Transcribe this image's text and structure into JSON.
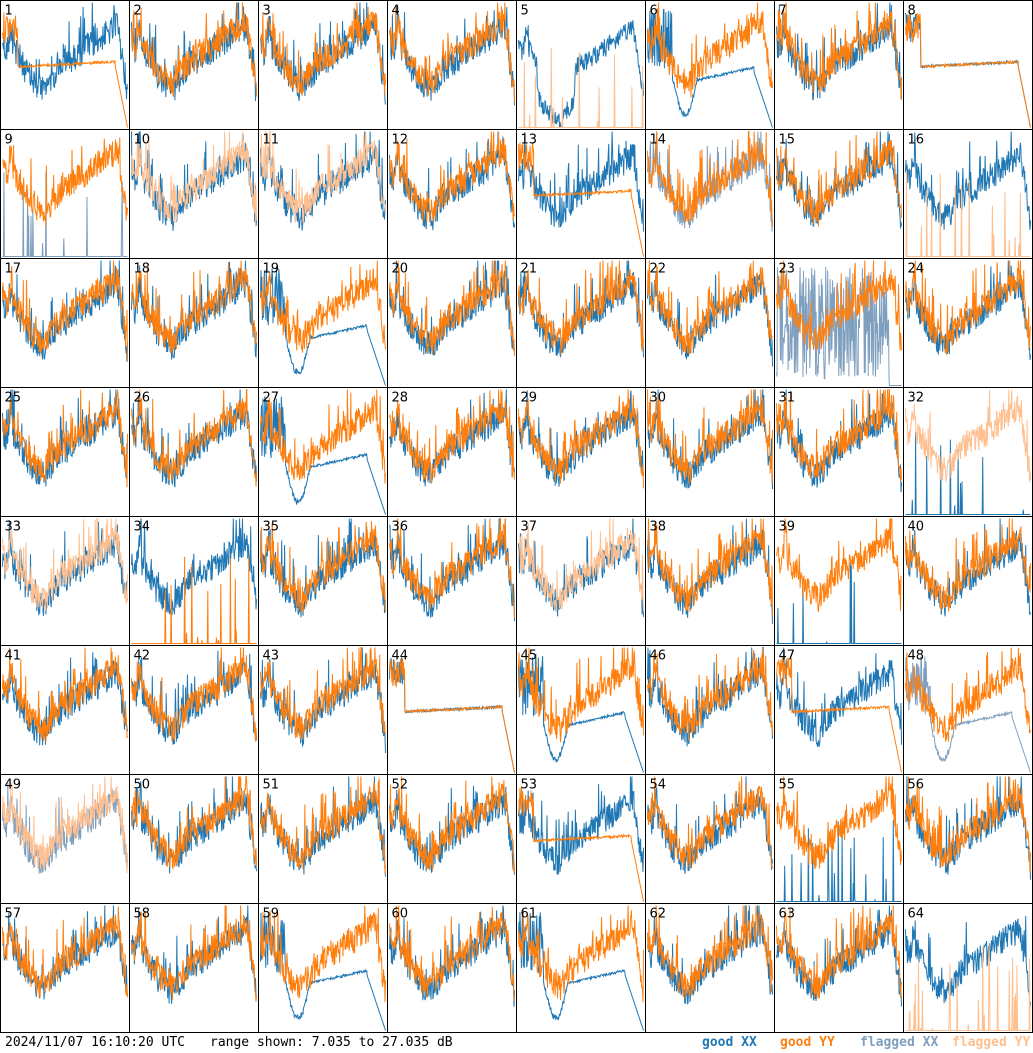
{
  "timestamp": "2024/11/07 16:10:20 UTC",
  "range_text": "range shown: 7.035 to 27.035 dB",
  "legend": [
    {
      "key": "good_xx",
      "label": "good XX",
      "color": "#1f77b4"
    },
    {
      "key": "good_yy",
      "label": "good YY",
      "color": "#ff7f0e"
    },
    {
      "key": "flagged_xx",
      "label": "flagged XX",
      "color": "#7f9fbf"
    },
    {
      "key": "flagged_yy",
      "label": "flagged YY",
      "color": "#ffbf8f"
    }
  ],
  "chart_data": {
    "type": "line",
    "layout": "small-multiples grid, 8 columns x 8 rows",
    "ylim": [
      7.035,
      27.035
    ],
    "yunit": "dB",
    "series_names": [
      "XX",
      "YY"
    ],
    "panels": [
      {
        "label": "1",
        "xx": "typical",
        "yy": "flat_dropoff",
        "xx_flag": false,
        "yy_flag": false
      },
      {
        "label": "2",
        "xx": "typical",
        "yy": "typical",
        "xx_flag": false,
        "yy_flag": false
      },
      {
        "label": "3",
        "xx": "typical",
        "yy": "typical",
        "xx_flag": false,
        "yy_flag": false
      },
      {
        "label": "4",
        "xx": "typical",
        "yy": "typical",
        "xx_flag": false,
        "yy_flag": false
      },
      {
        "label": "5",
        "xx": "deep_dip",
        "yy": "spikes",
        "xx_flag": false,
        "yy_flag": true
      },
      {
        "label": "6",
        "xx": "dip_dropoff",
        "yy": "typical",
        "xx_flag": false,
        "yy_flag": false
      },
      {
        "label": "7",
        "xx": "typical",
        "yy": "typical",
        "xx_flag": false,
        "yy_flag": false
      },
      {
        "label": "8",
        "xx": "flat_dropoff",
        "yy": "flat_dropoff",
        "xx_flag": false,
        "yy_flag": false
      },
      {
        "label": "9",
        "xx": "spikes",
        "yy": "typical",
        "xx_flag": true,
        "yy_flag": false
      },
      {
        "label": "10",
        "xx": "typical",
        "yy": "typical",
        "xx_flag": false,
        "yy_flag": true
      },
      {
        "label": "11",
        "xx": "typical",
        "yy": "typical",
        "xx_flag": false,
        "yy_flag": true
      },
      {
        "label": "12",
        "xx": "typical",
        "yy": "typical",
        "xx_flag": false,
        "yy_flag": false
      },
      {
        "label": "13",
        "xx": "typical",
        "yy": "flat_dropoff",
        "xx_flag": false,
        "yy_flag": false
      },
      {
        "label": "14",
        "xx": "typical",
        "yy": "typical",
        "xx_flag": true,
        "yy_flag": false
      },
      {
        "label": "15",
        "xx": "typical",
        "yy": "typical",
        "xx_flag": false,
        "yy_flag": false
      },
      {
        "label": "16",
        "xx": "typical",
        "yy": "spikes",
        "xx_flag": false,
        "yy_flag": true
      },
      {
        "label": "17",
        "xx": "typical",
        "yy": "typical",
        "xx_flag": false,
        "yy_flag": false
      },
      {
        "label": "18",
        "xx": "typical",
        "yy": "typical",
        "xx_flag": false,
        "yy_flag": false
      },
      {
        "label": "19",
        "xx": "dip_dropoff",
        "yy": "typical",
        "xx_flag": false,
        "yy_flag": false
      },
      {
        "label": "20",
        "xx": "typical",
        "yy": "typical",
        "xx_flag": false,
        "yy_flag": false
      },
      {
        "label": "21",
        "xx": "typical",
        "yy": "typical",
        "xx_flag": false,
        "yy_flag": false
      },
      {
        "label": "22",
        "xx": "typical",
        "yy": "typical",
        "xx_flag": false,
        "yy_flag": false
      },
      {
        "label": "23",
        "xx": "noise",
        "yy": "typical",
        "xx_flag": true,
        "yy_flag": false
      },
      {
        "label": "24",
        "xx": "typical",
        "yy": "typical",
        "xx_flag": false,
        "yy_flag": false
      },
      {
        "label": "25",
        "xx": "typical",
        "yy": "typical",
        "xx_flag": false,
        "yy_flag": false
      },
      {
        "label": "26",
        "xx": "typical",
        "yy": "typical",
        "xx_flag": false,
        "yy_flag": false
      },
      {
        "label": "27",
        "xx": "dip_dropoff",
        "yy": "typical",
        "xx_flag": false,
        "yy_flag": false
      },
      {
        "label": "28",
        "xx": "typical",
        "yy": "typical",
        "xx_flag": false,
        "yy_flag": false
      },
      {
        "label": "29",
        "xx": "typical",
        "yy": "typical",
        "xx_flag": false,
        "yy_flag": false
      },
      {
        "label": "30",
        "xx": "typical",
        "yy": "typical",
        "xx_flag": false,
        "yy_flag": false
      },
      {
        "label": "31",
        "xx": "typical",
        "yy": "typical",
        "xx_flag": false,
        "yy_flag": false
      },
      {
        "label": "32",
        "xx": "spikes",
        "yy": "typical",
        "xx_flag": false,
        "yy_flag": true
      },
      {
        "label": "33",
        "xx": "typical",
        "yy": "typical",
        "xx_flag": false,
        "yy_flag": true
      },
      {
        "label": "34",
        "xx": "typical",
        "yy": "spikes",
        "xx_flag": false,
        "yy_flag": false
      },
      {
        "label": "35",
        "xx": "typical",
        "yy": "typical",
        "xx_flag": false,
        "yy_flag": false
      },
      {
        "label": "36",
        "xx": "typical",
        "yy": "typical",
        "xx_flag": false,
        "yy_flag": false
      },
      {
        "label": "37",
        "xx": "typical",
        "yy": "typical",
        "xx_flag": false,
        "yy_flag": true
      },
      {
        "label": "38",
        "xx": "typical",
        "yy": "typical",
        "xx_flag": false,
        "yy_flag": false
      },
      {
        "label": "39",
        "xx": "spikes",
        "yy": "typical",
        "xx_flag": false,
        "yy_flag": false
      },
      {
        "label": "40",
        "xx": "typical",
        "yy": "typical",
        "xx_flag": false,
        "yy_flag": false
      },
      {
        "label": "41",
        "xx": "typical",
        "yy": "typical",
        "xx_flag": false,
        "yy_flag": false
      },
      {
        "label": "42",
        "xx": "typical",
        "yy": "typical",
        "xx_flag": false,
        "yy_flag": false
      },
      {
        "label": "43",
        "xx": "typical",
        "yy": "typical",
        "xx_flag": false,
        "yy_flag": false
      },
      {
        "label": "44",
        "xx": "flat_dropoff",
        "yy": "flat_dropoff",
        "xx_flag": false,
        "yy_flag": false
      },
      {
        "label": "45",
        "xx": "dip_dropoff",
        "yy": "typical",
        "xx_flag": false,
        "yy_flag": false
      },
      {
        "label": "46",
        "xx": "typical",
        "yy": "typical",
        "xx_flag": false,
        "yy_flag": false
      },
      {
        "label": "47",
        "xx": "typical",
        "yy": "flat_dropoff",
        "xx_flag": false,
        "yy_flag": false
      },
      {
        "label": "48",
        "xx": "dip_dropoff",
        "yy": "typical",
        "xx_flag": true,
        "yy_flag": false
      },
      {
        "label": "49",
        "xx": "typical",
        "yy": "typical",
        "xx_flag": true,
        "yy_flag": true
      },
      {
        "label": "50",
        "xx": "typical",
        "yy": "typical",
        "xx_flag": false,
        "yy_flag": false
      },
      {
        "label": "51",
        "xx": "typical",
        "yy": "typical",
        "xx_flag": false,
        "yy_flag": false
      },
      {
        "label": "52",
        "xx": "typical",
        "yy": "typical",
        "xx_flag": false,
        "yy_flag": false
      },
      {
        "label": "53",
        "xx": "typical",
        "yy": "flat_dropoff",
        "xx_flag": false,
        "yy_flag": false
      },
      {
        "label": "54",
        "xx": "typical",
        "yy": "typical",
        "xx_flag": false,
        "yy_flag": false
      },
      {
        "label": "55",
        "xx": "spikes",
        "yy": "typical",
        "xx_flag": false,
        "yy_flag": false
      },
      {
        "label": "56",
        "xx": "typical",
        "yy": "typical",
        "xx_flag": false,
        "yy_flag": false
      },
      {
        "label": "57",
        "xx": "typical",
        "yy": "typical",
        "xx_flag": false,
        "yy_flag": false
      },
      {
        "label": "58",
        "xx": "typical",
        "yy": "typical",
        "xx_flag": false,
        "yy_flag": false
      },
      {
        "label": "59",
        "xx": "dip_dropoff",
        "yy": "typical",
        "xx_flag": false,
        "yy_flag": false
      },
      {
        "label": "60",
        "xx": "typical",
        "yy": "typical",
        "xx_flag": false,
        "yy_flag": false
      },
      {
        "label": "61",
        "xx": "dip_dropoff",
        "yy": "typical",
        "xx_flag": false,
        "yy_flag": false
      },
      {
        "label": "62",
        "xx": "typical",
        "yy": "typical",
        "xx_flag": false,
        "yy_flag": false
      },
      {
        "label": "63",
        "xx": "typical",
        "yy": "typical",
        "xx_flag": false,
        "yy_flag": false
      },
      {
        "label": "64",
        "xx": "typical",
        "yy": "spikes",
        "xx_flag": false,
        "yy_flag": true
      }
    ]
  }
}
